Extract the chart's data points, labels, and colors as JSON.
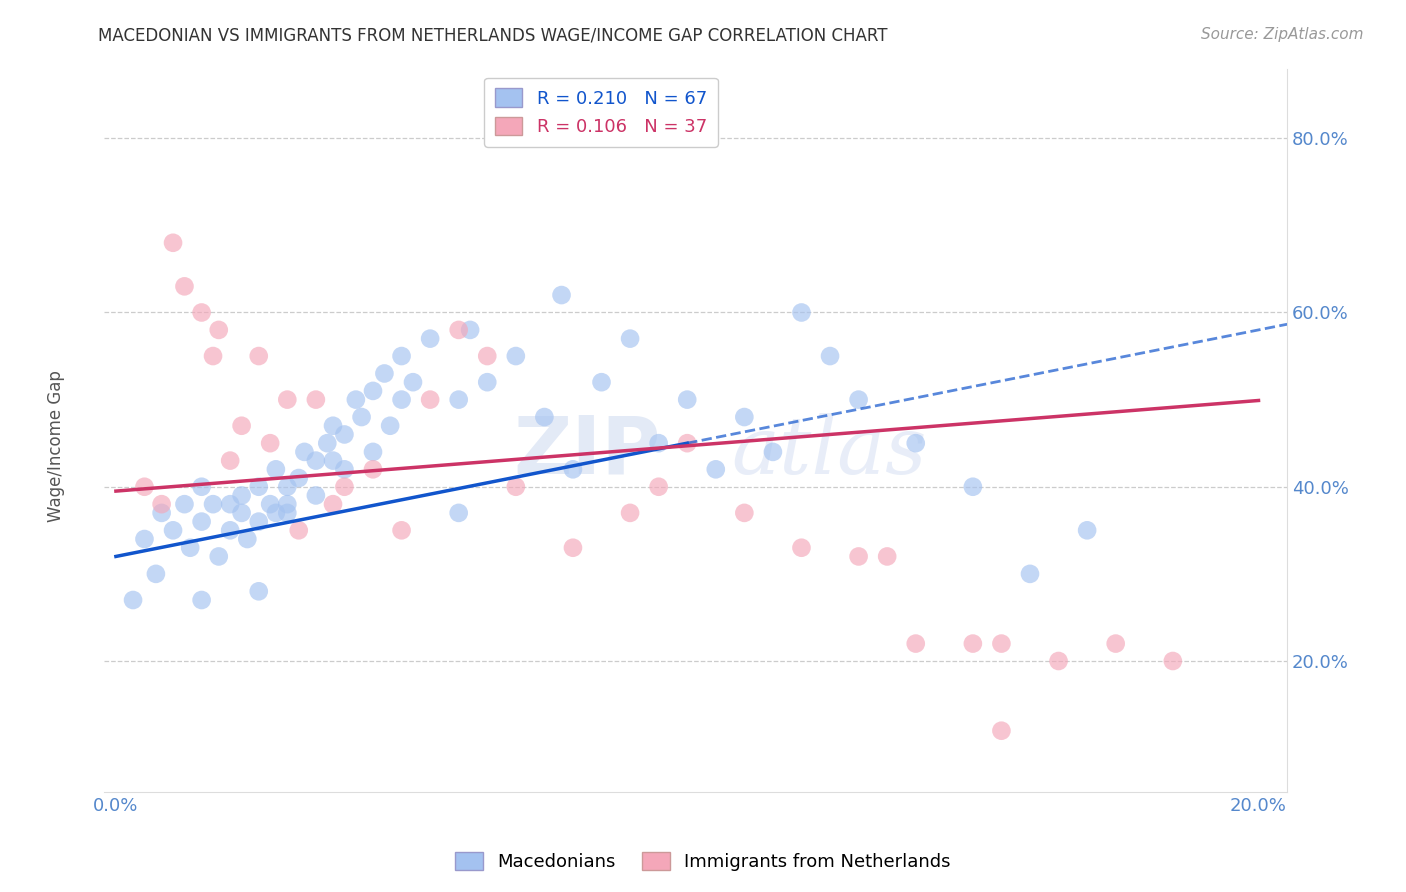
{
  "title": "MACEDONIAN VS IMMIGRANTS FROM NETHERLANDS WAGE/INCOME GAP CORRELATION CHART",
  "source": "Source: ZipAtlas.com",
  "ylabel": "Wage/Income Gap",
  "xlabel": "",
  "xlim": [
    -0.002,
    0.205
  ],
  "ylim": [
    0.05,
    0.88
  ],
  "yticks": [
    0.2,
    0.4,
    0.6,
    0.8
  ],
  "xticks": [
    0.0,
    0.05,
    0.1,
    0.15,
    0.2
  ],
  "xtick_labels": [
    "0.0%",
    "",
    "",
    "",
    "20.0%"
  ],
  "ytick_labels": [
    "20.0%",
    "40.0%",
    "60.0%",
    "80.0%"
  ],
  "blue_R": 0.21,
  "blue_N": 67,
  "pink_R": 0.106,
  "pink_N": 37,
  "blue_color": "#a4c2f0",
  "pink_color": "#f4a7b9",
  "blue_line_color": "#1155cc",
  "pink_line_color": "#cc3366",
  "blue_scatter_x": [
    0.005,
    0.008,
    0.01,
    0.012,
    0.013,
    0.015,
    0.015,
    0.017,
    0.018,
    0.02,
    0.02,
    0.022,
    0.022,
    0.023,
    0.025,
    0.025,
    0.027,
    0.028,
    0.028,
    0.03,
    0.03,
    0.03,
    0.032,
    0.033,
    0.035,
    0.035,
    0.037,
    0.038,
    0.038,
    0.04,
    0.04,
    0.042,
    0.043,
    0.045,
    0.045,
    0.047,
    0.048,
    0.05,
    0.05,
    0.052,
    0.055,
    0.06,
    0.062,
    0.065,
    0.07,
    0.075,
    0.078,
    0.08,
    0.085,
    0.09,
    0.095,
    0.1,
    0.105,
    0.11,
    0.115,
    0.12,
    0.125,
    0.13,
    0.14,
    0.15,
    0.16,
    0.17,
    0.003,
    0.007,
    0.015,
    0.025,
    0.06
  ],
  "blue_scatter_y": [
    0.34,
    0.37,
    0.35,
    0.38,
    0.33,
    0.36,
    0.4,
    0.38,
    0.32,
    0.35,
    0.38,
    0.37,
    0.39,
    0.34,
    0.36,
    0.4,
    0.38,
    0.37,
    0.42,
    0.37,
    0.4,
    0.38,
    0.41,
    0.44,
    0.43,
    0.39,
    0.45,
    0.47,
    0.43,
    0.42,
    0.46,
    0.5,
    0.48,
    0.51,
    0.44,
    0.53,
    0.47,
    0.5,
    0.55,
    0.52,
    0.57,
    0.5,
    0.58,
    0.52,
    0.55,
    0.48,
    0.62,
    0.42,
    0.52,
    0.57,
    0.45,
    0.5,
    0.42,
    0.48,
    0.44,
    0.6,
    0.55,
    0.5,
    0.45,
    0.4,
    0.3,
    0.35,
    0.27,
    0.3,
    0.27,
    0.28,
    0.37
  ],
  "pink_scatter_x": [
    0.005,
    0.008,
    0.01,
    0.012,
    0.015,
    0.017,
    0.018,
    0.02,
    0.022,
    0.025,
    0.027,
    0.03,
    0.032,
    0.035,
    0.038,
    0.04,
    0.045,
    0.05,
    0.055,
    0.06,
    0.065,
    0.07,
    0.08,
    0.09,
    0.095,
    0.1,
    0.11,
    0.12,
    0.13,
    0.135,
    0.14,
    0.15,
    0.155,
    0.165,
    0.175,
    0.185,
    0.155
  ],
  "pink_scatter_y": [
    0.4,
    0.38,
    0.68,
    0.63,
    0.6,
    0.55,
    0.58,
    0.43,
    0.47,
    0.55,
    0.45,
    0.5,
    0.35,
    0.5,
    0.38,
    0.4,
    0.42,
    0.35,
    0.5,
    0.58,
    0.55,
    0.4,
    0.33,
    0.37,
    0.4,
    0.45,
    0.37,
    0.33,
    0.32,
    0.32,
    0.22,
    0.22,
    0.22,
    0.2,
    0.22,
    0.2,
    0.12
  ],
  "legend_blue_label": "R = 0.210   N = 67",
  "legend_pink_label": "R = 0.106   N = 37",
  "legend_label_macedonians": "Macedonians",
  "legend_label_netherlands": "Immigrants from Netherlands",
  "watermark_zip": "ZIP",
  "watermark_atlas": "atlas",
  "background_color": "#ffffff",
  "grid_color": "#c0c0c0",
  "blue_intercept": 0.32,
  "blue_slope": 1.3,
  "pink_intercept": 0.395,
  "pink_slope": 0.52
}
